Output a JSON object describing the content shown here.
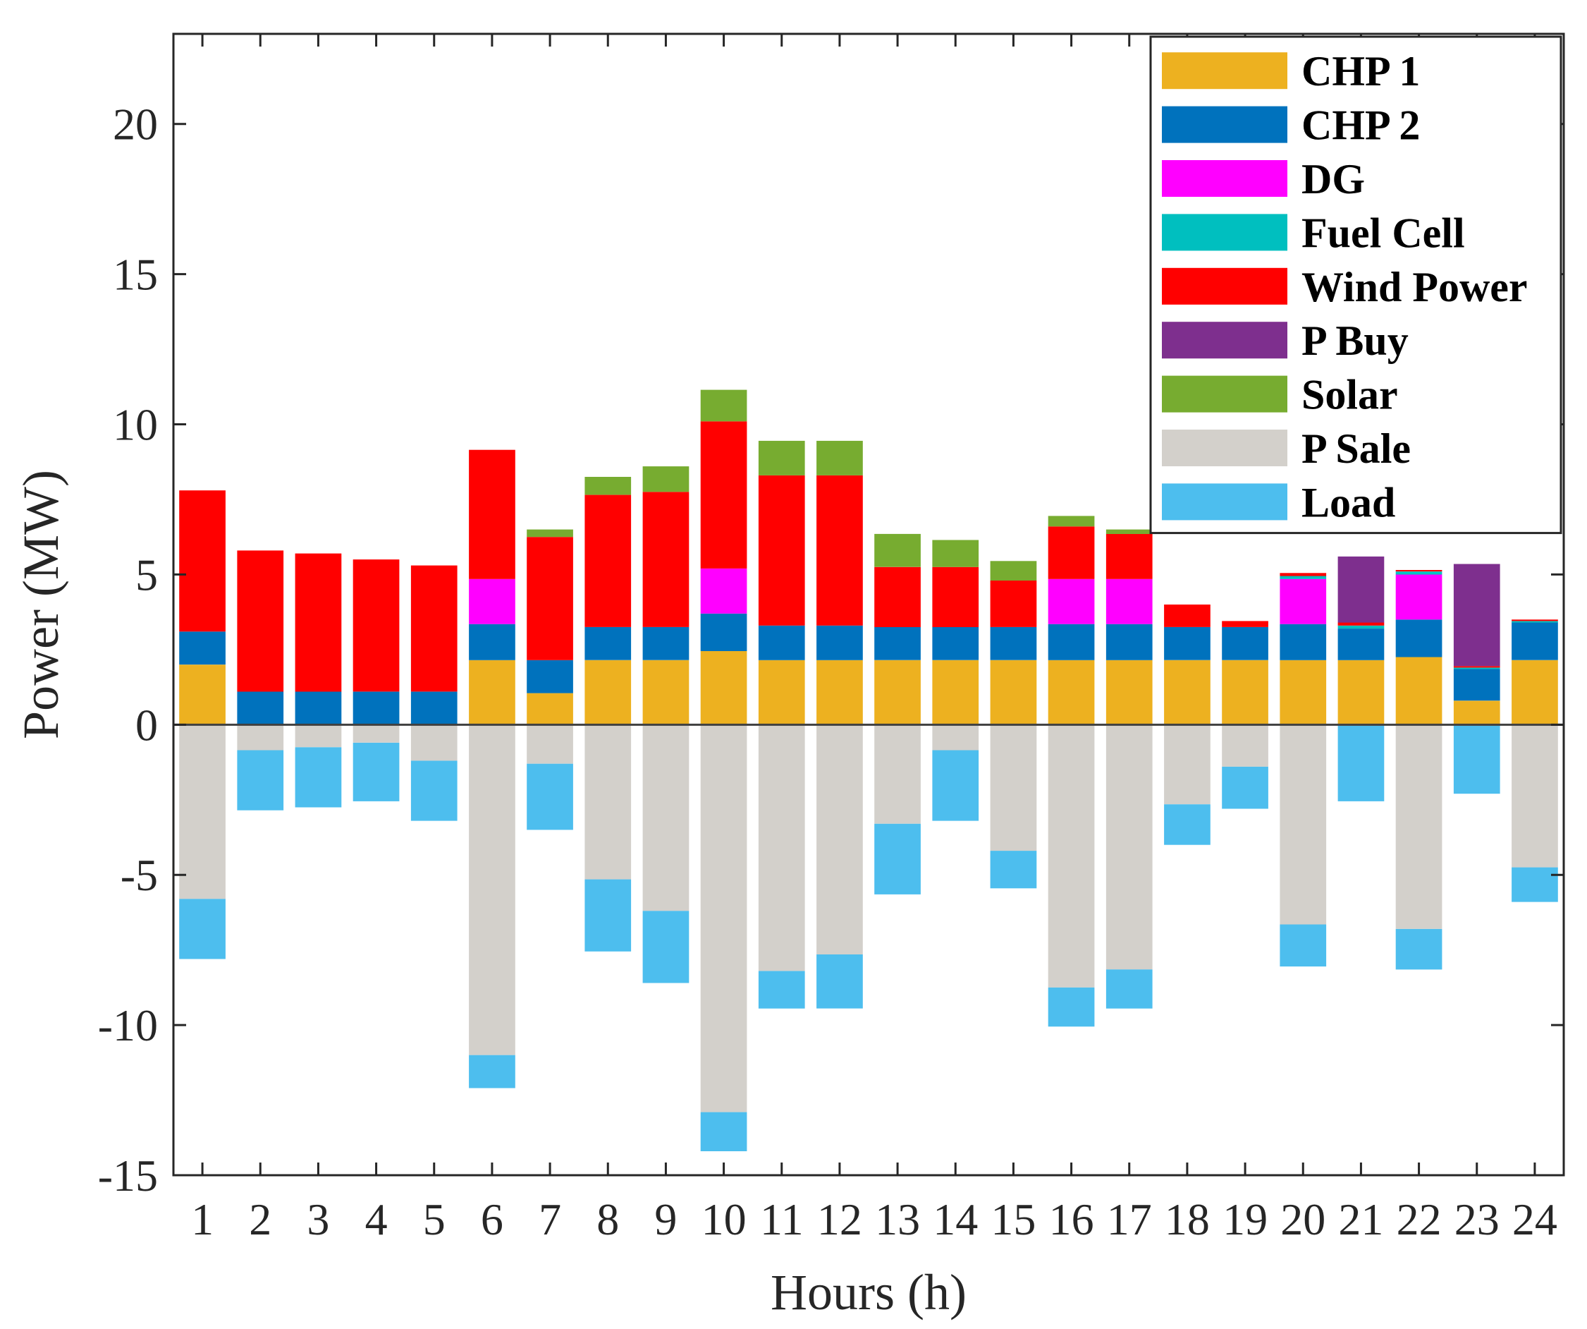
{
  "chart_data": {
    "type": "bar",
    "stacked": true,
    "title": "",
    "xlabel": "Hours (h)",
    "ylabel": "Power (MW)",
    "ylim": [
      -15,
      23
    ],
    "yticks": [
      20,
      15,
      10,
      5,
      0,
      -5,
      -10,
      -15
    ],
    "ytick_labels": [
      "20",
      "15",
      "10",
      "5",
      "0",
      "-5",
      "-10",
      "-15"
    ],
    "categories": [
      "1",
      "2",
      "3",
      "4",
      "5",
      "6",
      "7",
      "8",
      "9",
      "10",
      "11",
      "12",
      "13",
      "14",
      "15",
      "16",
      "17",
      "18",
      "19",
      "20",
      "21",
      "22",
      "23",
      "24"
    ],
    "legend_position": "top-right",
    "series": [
      {
        "name": "CHP 1",
        "color": "#EDB120",
        "values": [
          2.0,
          0,
          0,
          0,
          0,
          2.15,
          1.05,
          2.15,
          2.15,
          2.45,
          2.15,
          2.15,
          2.15,
          2.15,
          2.15,
          2.15,
          2.15,
          2.15,
          2.15,
          2.15,
          2.15,
          2.25,
          0.8,
          2.15
        ]
      },
      {
        "name": "CHP 2",
        "color": "#0072BD",
        "values": [
          1.1,
          1.1,
          1.1,
          1.1,
          1.1,
          1.2,
          1.1,
          1.1,
          1.1,
          1.25,
          1.15,
          1.15,
          1.1,
          1.1,
          1.1,
          1.2,
          1.2,
          1.1,
          1.1,
          1.2,
          1.05,
          1.25,
          1.05,
          1.25
        ]
      },
      {
        "name": "DG",
        "color": "#FF00FF",
        "values": [
          0,
          0,
          0,
          0,
          0,
          1.5,
          0,
          0,
          0,
          1.5,
          0,
          0,
          0,
          0,
          0,
          1.5,
          1.5,
          0,
          0,
          1.5,
          0,
          1.5,
          0,
          0
        ]
      },
      {
        "name": "Fuel Cell",
        "color": "#00BFBF",
        "values": [
          0,
          0,
          0,
          0,
          0,
          0,
          0,
          0,
          0,
          0,
          0,
          0,
          0,
          0,
          0,
          0,
          0,
          0,
          0,
          0.1,
          0.1,
          0.1,
          0.05,
          0.05
        ]
      },
      {
        "name": "Wind Power",
        "color": "#FF0000",
        "values": [
          4.7,
          4.7,
          4.6,
          4.4,
          4.2,
          4.3,
          4.1,
          4.4,
          4.5,
          4.9,
          5.0,
          5.0,
          2.0,
          2.0,
          1.55,
          1.75,
          1.5,
          0.75,
          0.2,
          0.1,
          0.1,
          0.05,
          0.05,
          0.05
        ]
      },
      {
        "name": "P Buy",
        "color": "#7E2F8E",
        "values": [
          0,
          0,
          0,
          0,
          0,
          0,
          0,
          0,
          0,
          0,
          0,
          0,
          0,
          0,
          0,
          0,
          0,
          0,
          0,
          0,
          2.2,
          0,
          3.4,
          0
        ]
      },
      {
        "name": "Solar",
        "color": "#77AC30",
        "values": [
          0,
          0,
          0,
          0,
          0,
          0,
          0.25,
          0.6,
          0.85,
          1.05,
          1.15,
          1.15,
          1.1,
          0.9,
          0.65,
          0.35,
          0.15,
          0,
          0,
          0,
          0,
          0,
          0,
          0
        ]
      },
      {
        "name": "P Sale",
        "color": "#D3D0CB",
        "values": [
          -5.8,
          -0.85,
          -0.75,
          -0.6,
          -1.2,
          -11.0,
          -1.3,
          -5.15,
          -6.2,
          -12.9,
          -8.2,
          -7.65,
          -3.3,
          -0.85,
          -4.2,
          -8.75,
          -8.15,
          -2.65,
          -1.4,
          -6.65,
          0,
          -6.8,
          0,
          -4.75
        ]
      },
      {
        "name": "Load",
        "color": "#4DBEEE",
        "values": [
          -2.0,
          -2.0,
          -2.0,
          -1.95,
          -2.0,
          -1.1,
          -2.2,
          -2.4,
          -2.4,
          -1.3,
          -1.25,
          -1.8,
          -2.35,
          -2.35,
          -1.25,
          -1.3,
          -1.3,
          -1.35,
          -1.4,
          -1.4,
          -2.55,
          -1.35,
          -2.3,
          -1.15
        ]
      }
    ]
  }
}
